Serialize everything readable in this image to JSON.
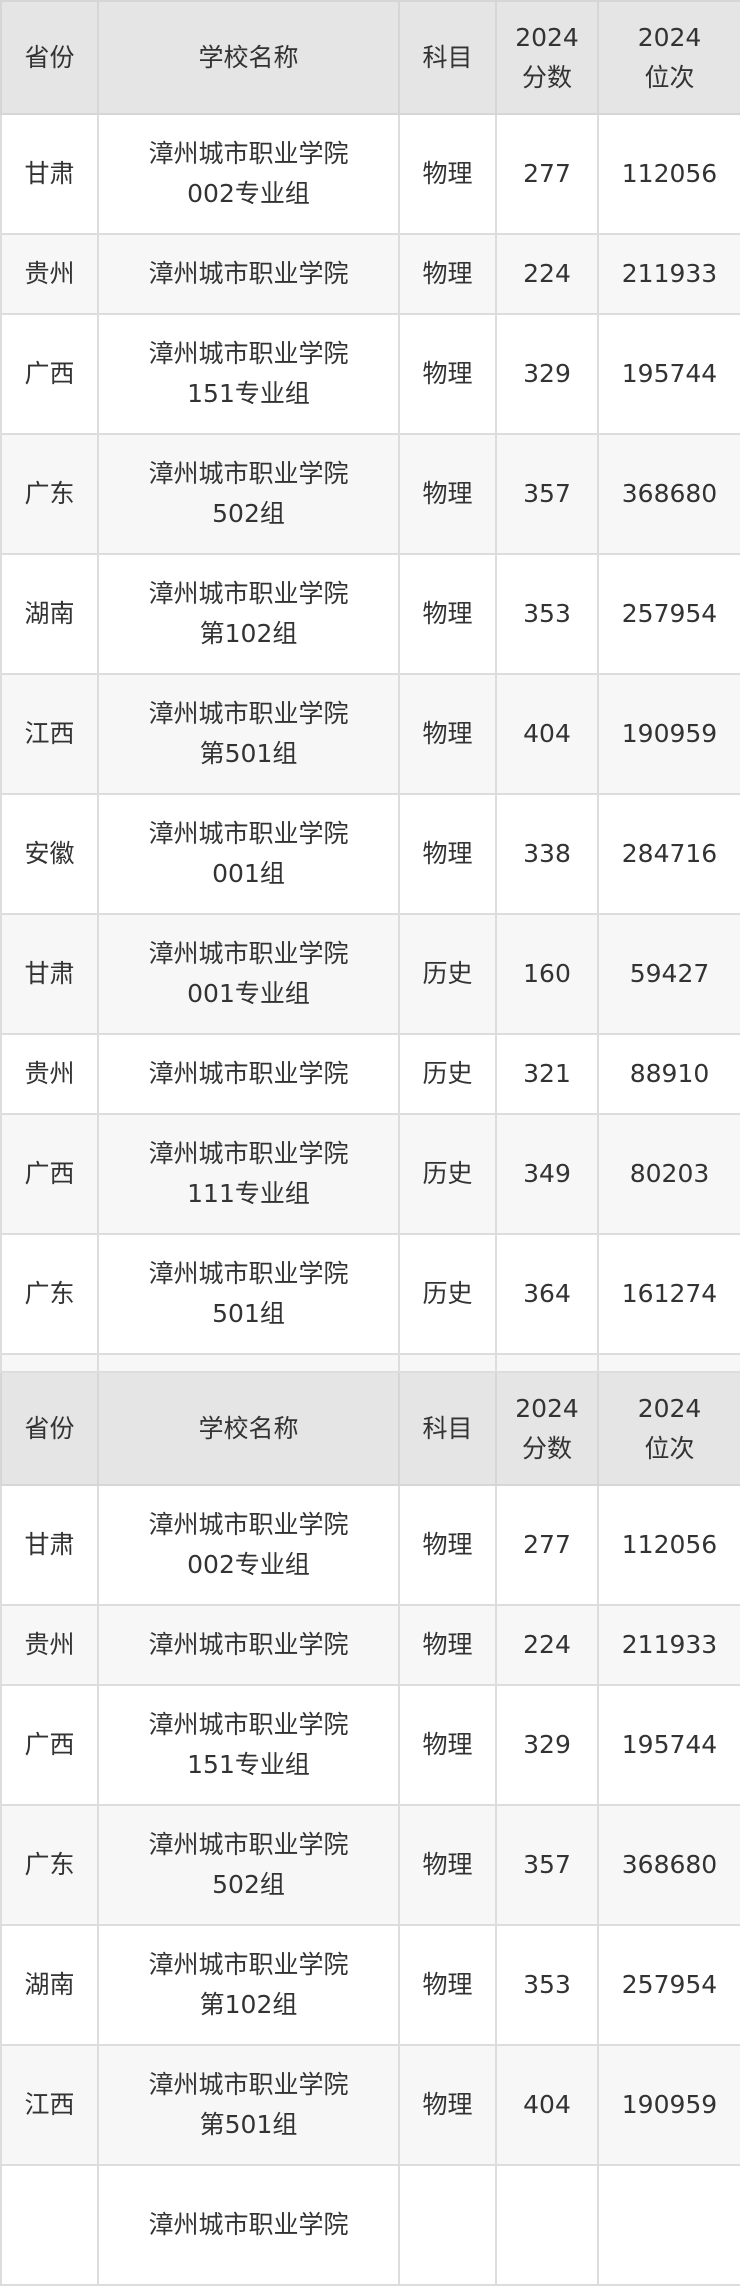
{
  "header": {
    "province": "省份",
    "school": "学校名称",
    "subject": "科目",
    "score": [
      "2024",
      "分数"
    ],
    "rank": [
      "2024",
      "位次"
    ]
  },
  "table1": [
    {
      "province": "甘肃",
      "school": [
        "漳州城市职业学院",
        "002专业组"
      ],
      "subject": "物理",
      "score": "277",
      "rank": "112056"
    },
    {
      "province": "贵州",
      "school": [
        "漳州城市职业学院"
      ],
      "subject": "物理",
      "score": "224",
      "rank": "211933"
    },
    {
      "province": "广西",
      "school": [
        "漳州城市职业学院",
        "151专业组"
      ],
      "subject": "物理",
      "score": "329",
      "rank": "195744"
    },
    {
      "province": "广东",
      "school": [
        "漳州城市职业学院",
        "502组"
      ],
      "subject": "物理",
      "score": "357",
      "rank": "368680"
    },
    {
      "province": "湖南",
      "school": [
        "漳州城市职业学院",
        "第102组"
      ],
      "subject": "物理",
      "score": "353",
      "rank": "257954"
    },
    {
      "province": "江西",
      "school": [
        "漳州城市职业学院",
        "第501组"
      ],
      "subject": "物理",
      "score": "404",
      "rank": "190959"
    },
    {
      "province": "安徽",
      "school": [
        "漳州城市职业学院",
        "001组"
      ],
      "subject": "物理",
      "score": "338",
      "rank": "284716"
    },
    {
      "province": "甘肃",
      "school": [
        "漳州城市职业学院",
        "001专业组"
      ],
      "subject": "历史",
      "score": "160",
      "rank": "59427"
    },
    {
      "province": "贵州",
      "school": [
        "漳州城市职业学院"
      ],
      "subject": "历史",
      "score": "321",
      "rank": "88910"
    },
    {
      "province": "广西",
      "school": [
        "漳州城市职业学院",
        "111专业组"
      ],
      "subject": "历史",
      "score": "349",
      "rank": "80203"
    },
    {
      "province": "广东",
      "school": [
        "漳州城市职业学院",
        "501组"
      ],
      "subject": "历史",
      "score": "364",
      "rank": "161274"
    }
  ],
  "table2": [
    {
      "province": "甘肃",
      "school": [
        "漳州城市职业学院",
        "002专业组"
      ],
      "subject": "物理",
      "score": "277",
      "rank": "112056"
    },
    {
      "province": "贵州",
      "school": [
        "漳州城市职业学院"
      ],
      "subject": "物理",
      "score": "224",
      "rank": "211933"
    },
    {
      "province": "广西",
      "school": [
        "漳州城市职业学院",
        "151专业组"
      ],
      "subject": "物理",
      "score": "329",
      "rank": "195744"
    },
    {
      "province": "广东",
      "school": [
        "漳州城市职业学院",
        "502组"
      ],
      "subject": "物理",
      "score": "357",
      "rank": "368680"
    },
    {
      "province": "湖南",
      "school": [
        "漳州城市职业学院",
        "第102组"
      ],
      "subject": "物理",
      "score": "353",
      "rank": "257954"
    },
    {
      "province": "江西",
      "school": [
        "漳州城市职业学院",
        "第501组"
      ],
      "subject": "物理",
      "score": "404",
      "rank": "190959"
    },
    {
      "province": "",
      "school": [
        "漳州城市职业学院"
      ],
      "subject": "",
      "score": "",
      "rank": ""
    }
  ]
}
